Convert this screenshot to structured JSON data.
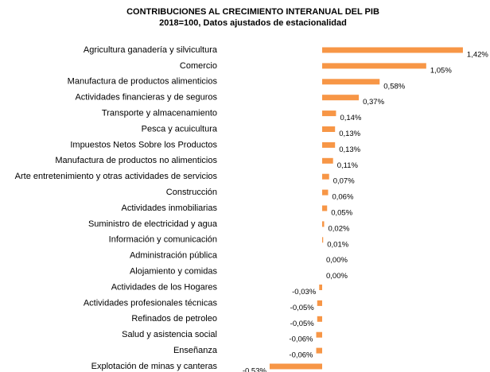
{
  "chart_data": {
    "type": "bar",
    "orientation": "horizontal",
    "title": "CONTRIBUCIONES AL CRECIMIENTO INTERANUAL DEL PIB",
    "subtitle": "2018=100, Datos ajustados de estacionalidad",
    "color": "#f79646",
    "categories": [
      "Agricultura  ganadería y silvicultura",
      "Comercio",
      "Manufactura de productos alimenticios",
      "Actividades financieras y de seguros",
      "Transporte y almacenamiento",
      "Pesca y acuicultura",
      "Impuestos Netos Sobre los Productos",
      "Manufactura de productos no alimenticios",
      "Arte  entretenimiento y otras actividades de servicios",
      "Construcción",
      "Actividades inmobiliarias",
      "Suministro de electricidad y agua",
      "Información y comunicación",
      "Administración pública",
      "Alojamiento y comidas",
      "Actividades de los Hogares",
      "Actividades profesionales  técnicas",
      "Refinados de petroleo",
      "Salud y asistencia social",
      "Enseñanza",
      "Explotación de minas y canteras"
    ],
    "values": [
      1.42,
      1.05,
      0.58,
      0.37,
      0.14,
      0.13,
      0.13,
      0.11,
      0.07,
      0.06,
      0.05,
      0.02,
      0.01,
      0.0,
      0.0,
      -0.03,
      -0.05,
      -0.05,
      -0.06,
      -0.06,
      -0.53
    ],
    "value_labels": [
      "1,42%",
      "1,05%",
      "0,58%",
      "0,37%",
      "0,14%",
      "0,13%",
      "0,13%",
      "0,11%",
      "0,07%",
      "0,06%",
      "0,05%",
      "0,02%",
      "0,01%",
      "0,00%",
      "0,00%",
      "-0,03%",
      "-0,05%",
      "-0,05%",
      "-0,06%",
      "-0,06%",
      "-0,53%"
    ]
  }
}
